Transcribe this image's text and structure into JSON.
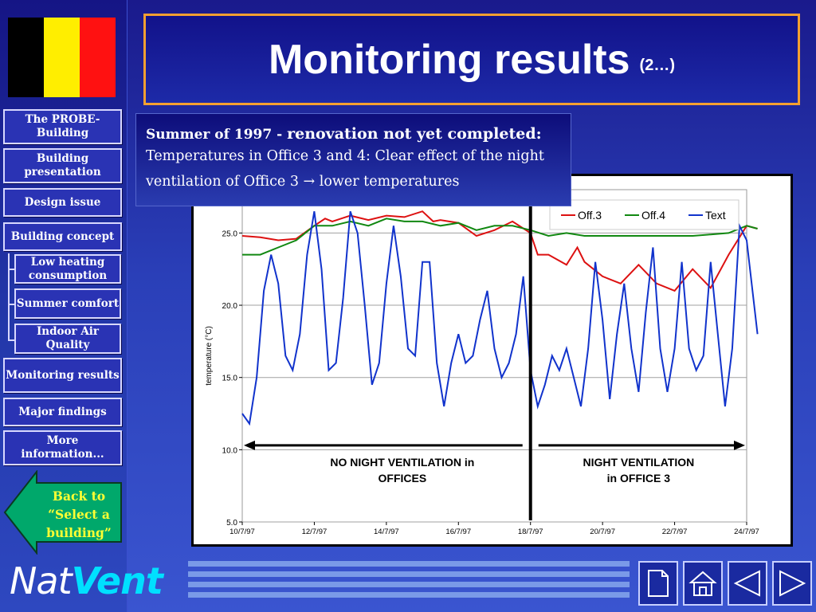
{
  "title": {
    "main": "Monitoring results",
    "sub": "(2…)"
  },
  "flag": {
    "colors": [
      "#000000",
      "#ffee00",
      "#ff1111"
    ]
  },
  "sidebar": {
    "items": [
      {
        "label": "The PROBE-Building"
      },
      {
        "label": "Building presentation"
      },
      {
        "label": "Design issue"
      },
      {
        "label": "Building concept"
      },
      {
        "label": "Low heating consumption"
      },
      {
        "label": "Summer comfort"
      },
      {
        "label": "Indoor Air Quality"
      },
      {
        "label": "Monitoring results"
      },
      {
        "label": "Major findings"
      },
      {
        "label": "More information..."
      }
    ],
    "back_button": "Back to “Select a building”"
  },
  "caption": {
    "line1_a": "Summer of 1997 - ",
    "line1_b": "renovation not yet completed:",
    "line2": "Temperatures in Office 3 and 4: Clear effect of the night",
    "line3": "ventilation of Office 3 → lower temperatures"
  },
  "brand": {
    "part1": "Nat",
    "part2": "Vent"
  },
  "footer_icons": [
    "page-icon",
    "home-icon",
    "previous-arrow-icon",
    "next-arrow-icon"
  ],
  "colors": {
    "accent_border": "#f5a030",
    "back_text": "#ffff33",
    "back_fill": "#00a86b",
    "brand_vent": "#00e0ff"
  },
  "chart_data": {
    "type": "line",
    "title": "",
    "xlabel": "",
    "ylabel": "temperature (°C)",
    "xlim": [
      "10/7/97",
      "24/7/97"
    ],
    "ylim": [
      5.0,
      28.0
    ],
    "x_ticks": [
      "10/7/97",
      "12/7/97",
      "14/7/97",
      "16/7/97",
      "18/7/97",
      "20/7/97",
      "22/7/97",
      "24/7/97"
    ],
    "y_ticks": [
      "5.0",
      "10.0",
      "15.0",
      "20.0",
      "25.0"
    ],
    "y_tick_values": [
      5,
      10,
      15,
      20,
      25
    ],
    "grid": "horizontal",
    "legend": "top-right",
    "divider_day": 18.0,
    "annotations": [
      "NO NIGHT VENTILATION in OFFICES",
      "NIGHT VENTILATION in OFFICE 3"
    ],
    "x_day_start": 10,
    "x_day_end": 24,
    "series": [
      {
        "name": "Off.3",
        "color": "#dd1111",
        "x": [
          10.0,
          10.5,
          11.0,
          11.5,
          12.0,
          12.3,
          12.5,
          13.0,
          13.5,
          14.0,
          14.5,
          15.0,
          15.3,
          15.5,
          16.0,
          16.5,
          17.0,
          17.5,
          18.0,
          18.2,
          18.5,
          19.0,
          19.3,
          19.5,
          20.0,
          20.5,
          21.0,
          21.5,
          22.0,
          22.5,
          23.0,
          23.5,
          24.0,
          24.3
        ],
        "y": [
          24.8,
          24.7,
          24.5,
          24.6,
          25.5,
          26.0,
          25.8,
          26.2,
          25.9,
          26.2,
          26.1,
          26.5,
          25.8,
          25.9,
          25.7,
          24.8,
          25.2,
          25.8,
          25.0,
          23.5,
          23.5,
          22.8,
          24.0,
          23.0,
          22.0,
          21.5,
          22.8,
          21.5,
          21.0,
          22.5,
          21.2,
          23.5,
          25.5,
          25.3
        ]
      },
      {
        "name": "Off.4",
        "color": "#118811",
        "x": [
          10.0,
          10.5,
          11.0,
          11.5,
          12.0,
          12.5,
          13.0,
          13.5,
          14.0,
          14.5,
          15.0,
          15.5,
          16.0,
          16.5,
          17.0,
          17.5,
          18.0,
          18.5,
          19.0,
          19.5,
          20.0,
          20.5,
          21.0,
          21.5,
          22.0,
          22.5,
          23.0,
          23.5,
          24.0,
          24.3
        ],
        "y": [
          23.5,
          23.5,
          24.0,
          24.5,
          25.5,
          25.5,
          25.8,
          25.5,
          26.0,
          25.8,
          25.8,
          25.5,
          25.7,
          25.2,
          25.5,
          25.5,
          25.2,
          24.8,
          25.0,
          24.8,
          24.8,
          24.8,
          24.8,
          24.8,
          24.8,
          24.8,
          24.9,
          25.0,
          25.5,
          25.3
        ]
      },
      {
        "name": "Text",
        "color": "#1133cc",
        "x": [
          10.0,
          10.2,
          10.4,
          10.6,
          10.8,
          11.0,
          11.2,
          11.4,
          11.6,
          11.8,
          12.0,
          12.2,
          12.4,
          12.6,
          12.8,
          13.0,
          13.2,
          13.4,
          13.6,
          13.8,
          14.0,
          14.2,
          14.4,
          14.6,
          14.8,
          15.0,
          15.2,
          15.4,
          15.6,
          15.8,
          16.0,
          16.2,
          16.4,
          16.6,
          16.8,
          17.0,
          17.2,
          17.4,
          17.6,
          17.8,
          18.0,
          18.2,
          18.4,
          18.6,
          18.8,
          19.0,
          19.2,
          19.4,
          19.6,
          19.8,
          20.0,
          20.2,
          20.4,
          20.6,
          20.8,
          21.0,
          21.2,
          21.4,
          21.6,
          21.8,
          22.0,
          22.2,
          22.4,
          22.6,
          22.8,
          23.0,
          23.2,
          23.4,
          23.6,
          23.8,
          24.0,
          24.3
        ],
        "y": [
          12.5,
          11.8,
          15.0,
          21.0,
          23.5,
          21.5,
          16.5,
          15.5,
          18.0,
          23.5,
          26.5,
          22.5,
          15.5,
          16.0,
          20.5,
          26.5,
          25.0,
          20.0,
          14.5,
          16.0,
          21.5,
          25.5,
          22.0,
          17.0,
          16.5,
          23.0,
          23.0,
          16.0,
          13.0,
          16.0,
          18.0,
          16.0,
          16.5,
          19.0,
          21.0,
          17.0,
          15.0,
          16.0,
          18.0,
          22.0,
          15.5,
          13.0,
          14.5,
          16.5,
          15.5,
          17.0,
          15.0,
          13.0,
          17.0,
          23.0,
          19.0,
          13.5,
          18.0,
          21.5,
          17.0,
          14.0,
          19.5,
          24.0,
          17.0,
          14.0,
          17.0,
          23.0,
          17.0,
          15.5,
          16.5,
          23.0,
          18.0,
          13.0,
          17.0,
          25.5,
          24.5,
          18.0
        ]
      }
    ]
  }
}
